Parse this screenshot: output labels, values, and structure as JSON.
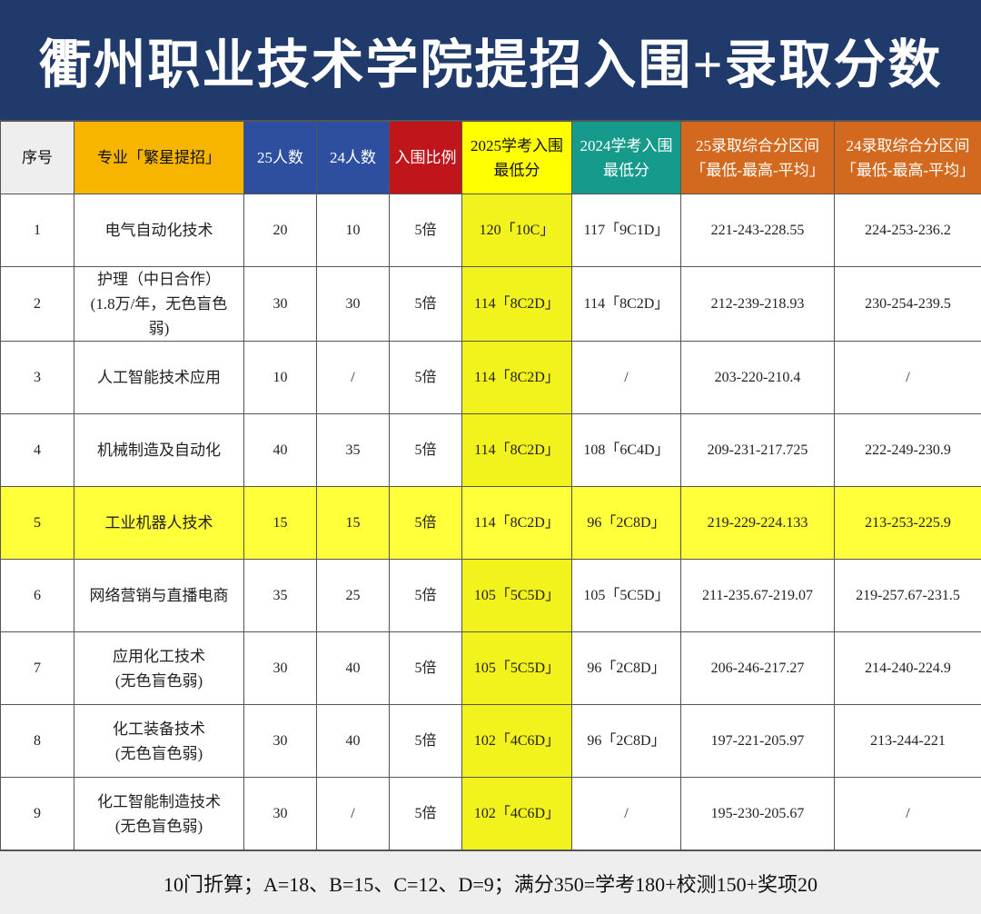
{
  "header": {
    "title": "衢州职业技术学院提招入围+录取分数"
  },
  "table": {
    "columns": [
      [
        "序号"
      ],
      [
        "专业「繁星提招」"
      ],
      [
        "25人数"
      ],
      [
        "24人数"
      ],
      [
        "入围比例"
      ],
      [
        "2025学考入围",
        "最低分"
      ],
      [
        "2024学考入围",
        "最低分"
      ],
      [
        "25录取综合分区间",
        "「最低-最高-平均」"
      ],
      [
        "24录取综合分区间",
        "「最低-最高-平均」"
      ]
    ],
    "highlight_row": 4,
    "rows": [
      [
        "1",
        [
          "电气自动化技术"
        ],
        "20",
        "10",
        "5倍",
        "120「10C」",
        "117「9C1D」",
        "221-243-228.55",
        "224-253-236.2"
      ],
      [
        "2",
        [
          "护理（中日合作）",
          "(1.8万/年，无色盲色",
          "弱)"
        ],
        "30",
        "30",
        "5倍",
        "114「8C2D」",
        "114「8C2D」",
        "212-239-218.93",
        "230-254-239.5"
      ],
      [
        "3",
        [
          "人工智能技术应用"
        ],
        "10",
        "/",
        "5倍",
        "114「8C2D」",
        "/",
        "203-220-210.4",
        "/"
      ],
      [
        "4",
        [
          "机械制造及自动化"
        ],
        "40",
        "35",
        "5倍",
        "114「8C2D」",
        "108「6C4D」",
        "209-231-217.725",
        "222-249-230.9"
      ],
      [
        "5",
        [
          "工业机器人技术"
        ],
        "15",
        "15",
        "5倍",
        "114「8C2D」",
        "96「2C8D」",
        "219-229-224.133",
        "213-253-225.9"
      ],
      [
        "6",
        [
          "网络营销与直播电商"
        ],
        "35",
        "25",
        "5倍",
        "105「5C5D」",
        "105「5C5D」",
        "211-235.67-219.07",
        "219-257.67-231.5"
      ],
      [
        "7",
        [
          "应用化工技术",
          "(无色盲色弱)"
        ],
        "30",
        "40",
        "5倍",
        "105「5C5D」",
        "96「2C8D」",
        "206-246-217.27",
        "214-240-224.9"
      ],
      [
        "8",
        [
          "化工装备技术",
          "(无色盲色弱)"
        ],
        "30",
        "40",
        "5倍",
        "102「4C6D」",
        "96「2C8D」",
        "197-221-205.97",
        "213-244-221"
      ],
      [
        "9",
        [
          "化工智能制造技术",
          "(无色盲色弱)"
        ],
        "30",
        "/",
        "5倍",
        "102「4C6D」",
        "/",
        "195-230-205.67",
        "/"
      ]
    ]
  },
  "footer": {
    "text": "10门折算；A=18、B=15、C=12、D=9；满分350=学考180+校测150+奖项20"
  }
}
